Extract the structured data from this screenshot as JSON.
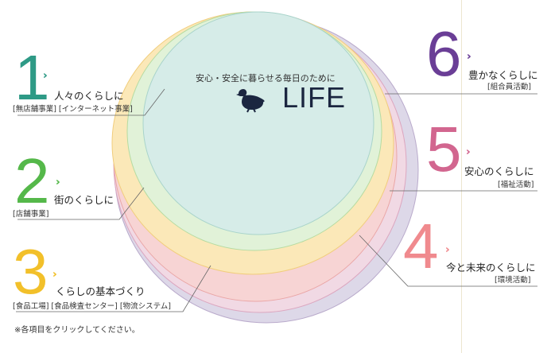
{
  "center": {
    "tagline": "安心・安全に暮らせる毎日のために",
    "logo_text": "LIFE"
  },
  "items": [
    {
      "number": "1",
      "title": "人々のくらしに",
      "sub": "[無店舗事業] [インターネット事業]",
      "color": "#2e9a86"
    },
    {
      "number": "2",
      "title": "街のくらしに",
      "sub": "[店舗事業]",
      "color": "#55b84a"
    },
    {
      "number": "3",
      "title": "くらしの基本づくり",
      "sub": "[食品工場] [食品検査センター] [物流システム]",
      "color": "#f2c02a"
    },
    {
      "number": "4",
      "title": "今と未来のくらしに",
      "sub": "[環境活動]",
      "color": "#f08a8e"
    },
    {
      "number": "5",
      "title": "安心のくらしに",
      "sub": "[福祉活動]",
      "color": "#d2668f"
    },
    {
      "number": "6",
      "title": "豊かなくらしに",
      "sub": "[組合員活動]",
      "color": "#6a3e96"
    }
  ],
  "note": "※各項目をクリックしてください。",
  "colors": {
    "ring6": "#ddd8e8",
    "ring5": "#f1d9e4",
    "ring4": "#f7d4d4",
    "ring3": "#fbe8b8",
    "ring2": "#e1f2d8",
    "ring1": "#d6ece8",
    "leader": "#666666"
  }
}
